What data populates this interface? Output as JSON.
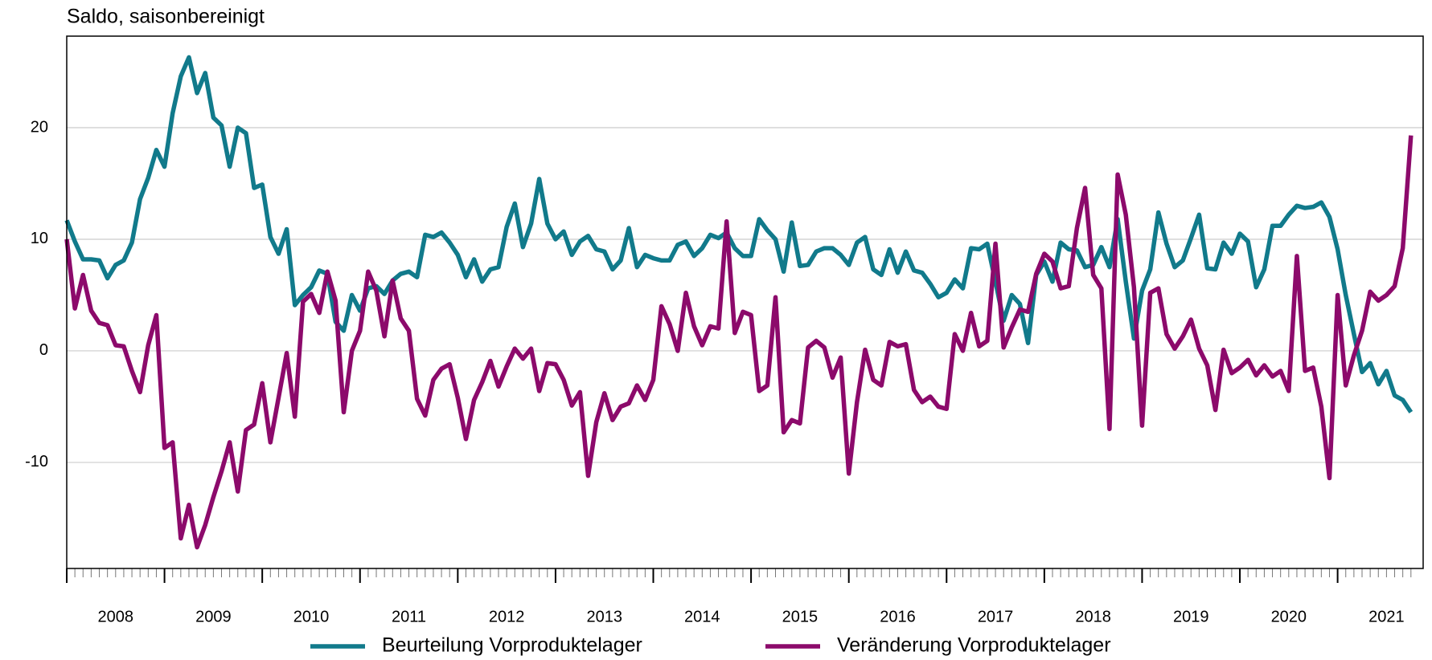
{
  "chart_data": {
    "type": "line",
    "title": "Saldo, saisonbereinigt",
    "categories": [
      null,
      null,
      null,
      null,
      null,
      null,
      "2008",
      null,
      null,
      null,
      null,
      null,
      null,
      null,
      null,
      null,
      null,
      null,
      "2009",
      null,
      null,
      null,
      null,
      null,
      null,
      null,
      null,
      null,
      null,
      null,
      "2010",
      null,
      null,
      null,
      null,
      null,
      null,
      null,
      null,
      null,
      null,
      null,
      "2011",
      null,
      null,
      null,
      null,
      null,
      null,
      null,
      null,
      null,
      null,
      null,
      "2012",
      null,
      null,
      null,
      null,
      null,
      null,
      null,
      null,
      null,
      null,
      null,
      "2013",
      null,
      null,
      null,
      null,
      null,
      null,
      null,
      null,
      null,
      null,
      null,
      "2014",
      null,
      null,
      null,
      null,
      null,
      null,
      null,
      null,
      null,
      null,
      null,
      "2015",
      null,
      null,
      null,
      null,
      null,
      null,
      null,
      null,
      null,
      null,
      null,
      "2016",
      null,
      null,
      null,
      null,
      null,
      null,
      null,
      null,
      null,
      null,
      null,
      "2017",
      null,
      null,
      null,
      null,
      null,
      null,
      null,
      null,
      null,
      null,
      null,
      "2018",
      null,
      null,
      null,
      null,
      null,
      null,
      null,
      null,
      null,
      null,
      null,
      "2019",
      null,
      null,
      null,
      null,
      null,
      null,
      null,
      null,
      null,
      null,
      null,
      "2020",
      null,
      null,
      null,
      null,
      null,
      null,
      null,
      null,
      null,
      null,
      null,
      "2021",
      null,
      null,
      null
    ],
    "series": [
      {
        "name": "Beurteilung Vorproduktelager",
        "color": "#117a8b",
        "values": [
          11.7,
          9.8,
          8.2,
          8.2,
          8.1,
          6.5,
          7.7,
          8.1,
          9.7,
          13.6,
          15.5,
          18.0,
          16.5,
          21.3,
          24.6,
          26.3,
          23.1,
          24.9,
          20.9,
          20.2,
          16.5,
          20.0,
          19.5,
          14.6,
          14.9,
          10.2,
          8.7,
          10.9,
          4.1,
          5.0,
          5.7,
          7.2,
          6.9,
          2.6,
          1.8,
          5.0,
          3.6,
          5.6,
          5.8,
          5.1,
          6.3,
          6.9,
          7.1,
          6.6,
          10.4,
          10.2,
          10.6,
          9.7,
          8.6,
          6.6,
          8.2,
          6.2,
          7.3,
          7.5,
          11.1,
          13.2,
          9.3,
          11.4,
          15.4,
          11.4,
          10.0,
          10.7,
          8.6,
          9.8,
          10.3,
          9.1,
          8.9,
          7.3,
          8.1,
          11.0,
          7.5,
          8.6,
          8.3,
          8.1,
          8.1,
          9.5,
          9.8,
          8.5,
          9.2,
          10.4,
          10.1,
          10.6,
          9.2,
          8.5,
          8.5,
          11.8,
          10.8,
          10.0,
          7.1,
          11.5,
          7.6,
          7.7,
          8.9,
          9.2,
          9.2,
          8.6,
          7.7,
          9.7,
          10.2,
          7.3,
          6.8,
          9.1,
          7.0,
          8.9,
          7.2,
          7.0,
          6.0,
          4.8,
          5.2,
          6.4,
          5.6,
          9.2,
          9.1,
          9.6,
          6.2,
          2.7,
          5.0,
          4.2,
          0.7,
          6.8,
          8.0,
          6.2,
          9.7,
          9.1,
          9.0,
          7.5,
          7.7,
          9.3,
          7.5,
          11.8,
          6.2,
          1.1,
          5.4,
          7.3,
          12.4,
          9.6,
          7.5,
          8.1,
          10.1,
          12.2,
          7.4,
          7.3,
          9.7,
          8.7,
          10.5,
          9.8,
          5.7,
          7.3,
          11.2,
          11.2,
          12.2,
          13.0,
          12.8,
          12.9,
          13.3,
          12.0,
          9.1,
          5.0,
          1.5,
          -1.9,
          -1.1,
          -3.0,
          -1.8,
          -4.0,
          -4.4,
          -5.5
        ]
      },
      {
        "name": "Veränderung Vorproduktelager",
        "color": "#8c0a6b",
        "values": [
          10.0,
          3.8,
          6.8,
          3.6,
          2.5,
          2.3,
          0.5,
          0.4,
          -1.8,
          -3.7,
          0.5,
          3.2,
          -8.7,
          -8.2,
          -16.8,
          -13.8,
          -17.6,
          -15.6,
          -13.1,
          -10.8,
          -8.2,
          -12.6,
          -7.1,
          -6.6,
          -2.9,
          -8.2,
          -4.2,
          -0.2,
          -5.9,
          4.4,
          5.1,
          3.4,
          7.1,
          4.5,
          -5.5,
          0.0,
          1.8,
          7.1,
          5.4,
          1.3,
          6.3,
          2.9,
          1.8,
          -4.3,
          -5.8,
          -2.6,
          -1.6,
          -1.2,
          -4.2,
          -7.9,
          -4.4,
          -2.8,
          -0.9,
          -3.2,
          -1.4,
          0.2,
          -0.7,
          0.2,
          -3.6,
          -1.1,
          -1.2,
          -2.6,
          -4.9,
          -3.7,
          -11.2,
          -6.4,
          -3.8,
          -6.2,
          -5.0,
          -4.7,
          -3.1,
          -4.4,
          -2.6,
          4.0,
          2.4,
          0.0,
          5.2,
          2.2,
          0.5,
          2.2,
          2.0,
          11.6,
          1.6,
          3.5,
          3.2,
          -3.6,
          -3.1,
          4.8,
          -7.3,
          -6.2,
          -6.5,
          0.3,
          0.9,
          0.3,
          -2.4,
          -0.6,
          -11.0,
          -4.6,
          0.1,
          -2.6,
          -3.1,
          0.8,
          0.4,
          0.6,
          -3.5,
          -4.6,
          -4.1,
          -5.0,
          -5.2,
          1.5,
          0.0,
          3.4,
          0.4,
          0.9,
          9.6,
          0.3,
          2.1,
          3.7,
          3.5,
          6.9,
          8.7,
          8.0,
          5.6,
          5.8,
          11.0,
          14.6,
          6.8,
          5.6,
          -7.0,
          15.8,
          12.2,
          5.7,
          -6.7,
          5.2,
          5.6,
          1.5,
          0.2,
          1.3,
          2.8,
          0.2,
          -1.3,
          -5.3,
          0.1,
          -2.0,
          -1.5,
          -0.8,
          -2.2,
          -1.3,
          -2.3,
          -1.8,
          -3.6,
          8.5,
          -1.8,
          -1.5,
          -5.0,
          -11.4,
          5.0,
          -3.1,
          -0.4,
          1.8,
          5.3,
          4.5,
          5.0,
          5.8,
          9.2,
          19.3
        ]
      }
    ],
    "ylim": [
      -19.5,
      28.2
    ],
    "yticks": [
      -10,
      0,
      10,
      20
    ],
    "grid": true,
    "legend": "bottom"
  }
}
